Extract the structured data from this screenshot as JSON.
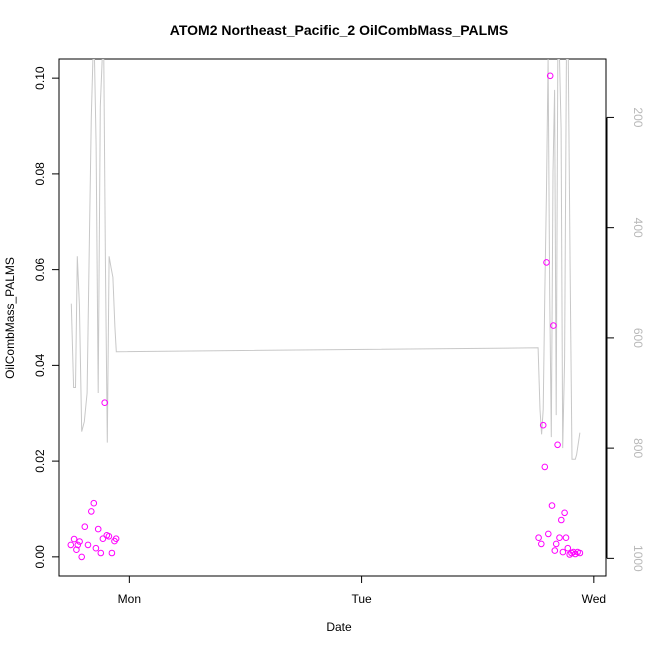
{
  "chart_data": {
    "type": "scatter",
    "title": "ATOM2 Northeast_Pacific_2 OilCombMass_PALMS",
    "xlabel": "Date",
    "ylabel": "OilCombMass_PALMS",
    "x_unit": "days",
    "x_ticks": [
      {
        "label": "Mon",
        "value": 1.0
      },
      {
        "label": "Tue",
        "value": 2.0
      },
      {
        "label": "Wed",
        "value": 3.0
      }
    ],
    "xlim": [
      0.6971,
      3.0524
    ],
    "ylim": [
      -0.004,
      0.104
    ],
    "y_ticks": [
      0.0,
      0.02,
      0.04,
      0.06,
      0.08,
      0.1
    ],
    "y_tick_labels": [
      "0.00",
      "0.02",
      "0.04",
      "0.06",
      "0.08",
      "0.10"
    ],
    "y2_ticks": [
      200,
      400,
      600,
      800,
      1000
    ],
    "y2_tick_labels": [
      "200",
      "400",
      "600",
      "800",
      "1000"
    ],
    "y2lim": [
      1032,
      94
    ],
    "grid": false,
    "series": [
      {
        "kind": "points",
        "color": "#ff00ff",
        "x": [
          0.748,
          0.762,
          0.772,
          0.778,
          0.786,
          0.795,
          0.808,
          0.822,
          0.836,
          0.847,
          0.856,
          0.866,
          0.877,
          0.886,
          0.894,
          0.903,
          0.912,
          0.925,
          0.936,
          0.943,
          2.762,
          2.774,
          2.782,
          2.789,
          2.796,
          2.804,
          2.812,
          2.82,
          2.826,
          2.832,
          2.838,
          2.844,
          2.852,
          2.86,
          2.867,
          2.874,
          2.88,
          2.888,
          2.896,
          2.904,
          2.912,
          2.92,
          2.93,
          2.94
        ],
        "y": [
          0.0025,
          0.0037,
          0.0015,
          0.0025,
          0.0032,
          0.0,
          0.0063,
          0.0025,
          0.0095,
          0.0112,
          0.0018,
          0.0058,
          0.0008,
          0.0038,
          0.0322,
          0.0045,
          0.0043,
          0.0008,
          0.0033,
          0.0038,
          0.004,
          0.0027,
          0.0275,
          0.0188,
          0.0615,
          0.0048,
          0.1005,
          0.0107,
          0.0483,
          0.0013,
          0.0027,
          0.0234,
          0.004,
          0.0077,
          0.001,
          0.0092,
          0.004,
          0.0018,
          0.0005,
          0.0008,
          0.001,
          0.0006,
          0.001,
          0.0008
        ]
      },
      {
        "kind": "line",
        "axis": "right",
        "color": "#c8c8c8",
        "x": [
          0.75,
          0.76,
          0.768,
          0.776,
          0.785,
          0.795,
          0.806,
          0.818,
          0.828,
          0.836,
          0.843,
          0.85,
          0.857,
          0.866,
          0.875,
          0.883,
          0.89,
          0.897,
          0.905,
          0.913,
          0.921,
          0.929,
          0.938,
          0.944,
          0.945,
          2.76,
          2.768,
          2.775,
          2.782,
          2.789,
          2.796,
          2.803,
          2.81,
          2.817,
          2.824,
          2.831,
          2.838,
          2.845,
          2.852,
          2.859,
          2.866,
          2.874,
          2.882,
          2.89,
          2.898,
          2.906,
          2.914,
          2.92,
          2.926,
          2.94
        ],
        "y": [
          538,
          690,
          690,
          452,
          540,
          770,
          752,
          700,
          420,
          200,
          94,
          94,
          250,
          700,
          180,
          94,
          94,
          460,
          790,
          452,
          472,
          490,
          580,
          625,
          625,
          618,
          730,
          775,
          730,
          520,
          330,
          94,
          520,
          780,
          300,
          150,
          740,
          94,
          94,
          220,
          800,
          640,
          94,
          94,
          470,
          820,
          820,
          820,
          812,
          772
        ]
      }
    ]
  }
}
